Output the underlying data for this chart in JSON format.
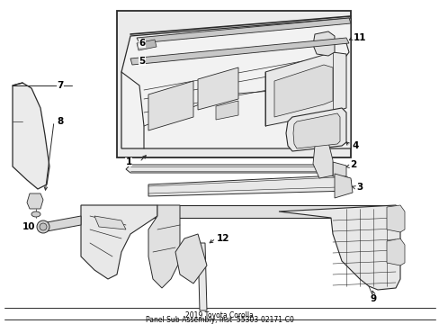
{
  "title": "2019 Toyota Corolla",
  "subtitle": "Panel Sub-Assembly, Inst",
  "part_number": "55303-02171-C0",
  "background_color": "#ffffff",
  "line_color": "#2a2a2a",
  "box_fill": "#eeeeee",
  "part_fill": "#f0f0f0",
  "text_color": "#000000",
  "fig_width": 4.89,
  "fig_height": 3.6,
  "dpi": 100,
  "footer_line1": "2019 Toyota Corolla",
  "footer_line2": "Panel Sub-Assembly, Inst  55303-02171-C0"
}
